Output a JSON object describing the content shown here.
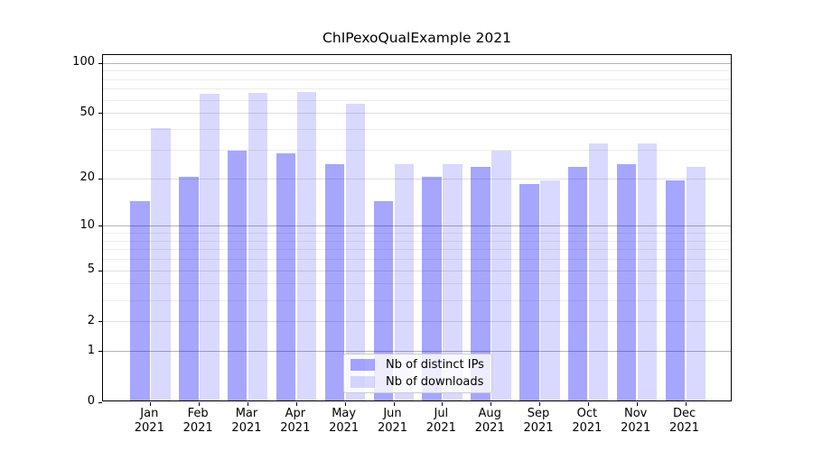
{
  "title": "ChIPexoQualExample 2021",
  "chart_data": {
    "type": "bar",
    "title": "ChIPexoQualExample 2021",
    "categories": [
      "Jan",
      "Feb",
      "Mar",
      "Apr",
      "May",
      "Jun",
      "Jul",
      "Aug",
      "Sep",
      "Oct",
      "Nov",
      "Dec"
    ],
    "x_year_label": "2021",
    "series": [
      {
        "name": "Nb of distinct IPs",
        "color": "rgba(0,0,255,0.35)",
        "hex": "#a6a6f9",
        "values": [
          14,
          20,
          29,
          28,
          24,
          14,
          20,
          23,
          18,
          23,
          24,
          19
        ]
      },
      {
        "name": "Nb of downloads",
        "color": "rgba(0,0,255,0.15)",
        "hex": "#d9d9fb",
        "values": [
          40,
          64,
          65,
          66,
          56,
          24,
          24,
          29,
          19,
          32,
          32,
          23
        ]
      }
    ],
    "yscale": "log1p",
    "ylim": [
      0,
      112
    ],
    "yticks": [
      0,
      1,
      2,
      5,
      10,
      20,
      50,
      100
    ],
    "yticks_minor": [
      3,
      4,
      6,
      7,
      8,
      9,
      30,
      40,
      60,
      70,
      80,
      90
    ],
    "grid": "on",
    "legend_position": "lower center"
  },
  "colors": {
    "spine": "#000000",
    "grid_decade": "#b4b4b4",
    "grid_mid": "#e0e0e0",
    "grid_minor": "#ededed",
    "background": "#ffffff"
  }
}
